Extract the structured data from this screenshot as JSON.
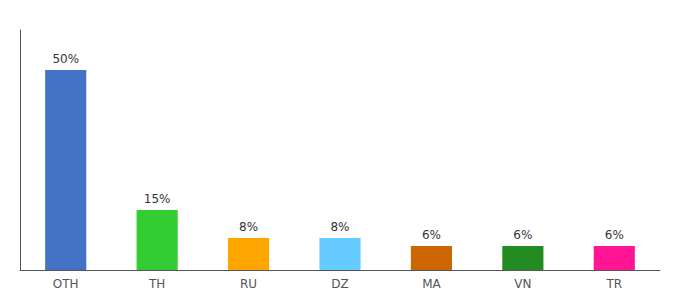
{
  "chart_data": {
    "type": "bar",
    "categories": [
      "OTH",
      "TH",
      "RU",
      "DZ",
      "MA",
      "VN",
      "TR"
    ],
    "values": [
      50,
      15,
      8,
      8,
      6,
      6,
      6
    ],
    "value_labels": [
      "50%",
      "15%",
      "8%",
      "8%",
      "6%",
      "6%",
      "6%"
    ],
    "colors": [
      "#4472C4",
      "#33CC33",
      "#FFA500",
      "#66CCFF",
      "#CC6600",
      "#228B22",
      "#FF1493"
    ],
    "ylim": [
      0,
      60
    ],
    "grid": false,
    "data_labels": true,
    "tick_labels": "x"
  }
}
